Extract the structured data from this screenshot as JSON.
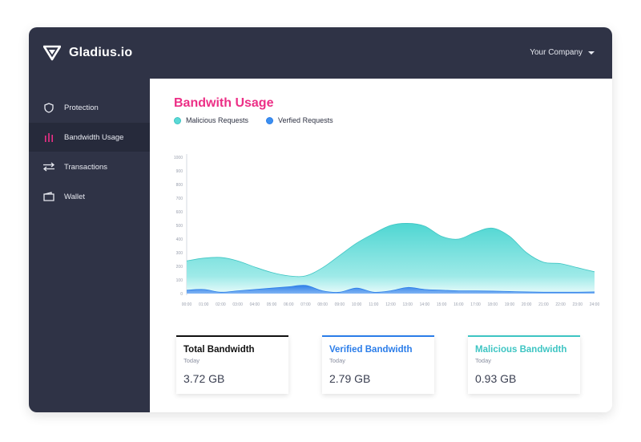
{
  "header": {
    "brand": "Gladius.io",
    "company": "Your Company"
  },
  "sidebar": {
    "items": [
      {
        "label": "Protection",
        "icon": "shield-icon"
      },
      {
        "label": "Bandwidth Usage",
        "icon": "bar-chart-icon",
        "active": true
      },
      {
        "label": "Transactions",
        "icon": "swap-arrows-icon"
      },
      {
        "label": "Wallet",
        "icon": "wallet-icon"
      }
    ]
  },
  "main": {
    "title": "Bandwith Usage",
    "legend": [
      {
        "label": "Malicious Requests",
        "color": "#5bd9d6"
      },
      {
        "label": "Verfied Requests",
        "color": "#3b8ff0"
      }
    ]
  },
  "chart_data": {
    "type": "area",
    "x": [
      "00:00",
      "01:00",
      "02:00",
      "03:00",
      "04:00",
      "05:00",
      "06:00",
      "07:00",
      "08:00",
      "09:00",
      "10:00",
      "11:00",
      "12:00",
      "13:00",
      "14:00",
      "15:00",
      "16:00",
      "17:00",
      "18:00",
      "19:00",
      "20:00",
      "21:00",
      "22:00",
      "23:00",
      "24:00"
    ],
    "y_ticks": [
      0,
      100,
      200,
      300,
      400,
      500,
      600,
      700,
      800,
      900,
      1000
    ],
    "ylim": [
      0,
      1000
    ],
    "series": [
      {
        "name": "Malicious Requests",
        "color": "#5bd9d6",
        "values": [
          240,
          260,
          265,
          240,
          195,
          155,
          130,
          130,
          190,
          280,
          370,
          440,
          500,
          515,
          495,
          420,
          400,
          450,
          480,
          420,
          300,
          230,
          220,
          190,
          160
        ]
      },
      {
        "name": "Verfied Requests",
        "color": "#3b8ff0",
        "values": [
          25,
          30,
          10,
          20,
          30,
          40,
          50,
          60,
          20,
          10,
          40,
          10,
          20,
          45,
          30,
          25,
          20,
          20,
          18,
          15,
          12,
          10,
          10,
          10,
          12
        ]
      }
    ]
  },
  "cards": [
    {
      "title": "Total Bandwidth",
      "subtitle": "Today",
      "value": "3.72 GB",
      "color": "#111111"
    },
    {
      "title": "Verified Bandwidth",
      "subtitle": "Today",
      "value": "2.79 GB",
      "color": "#2b7de9"
    },
    {
      "title": "Malicious Bandwidth",
      "subtitle": "Today",
      "value": "0.93 GB",
      "color": "#3ec5c3"
    }
  ]
}
